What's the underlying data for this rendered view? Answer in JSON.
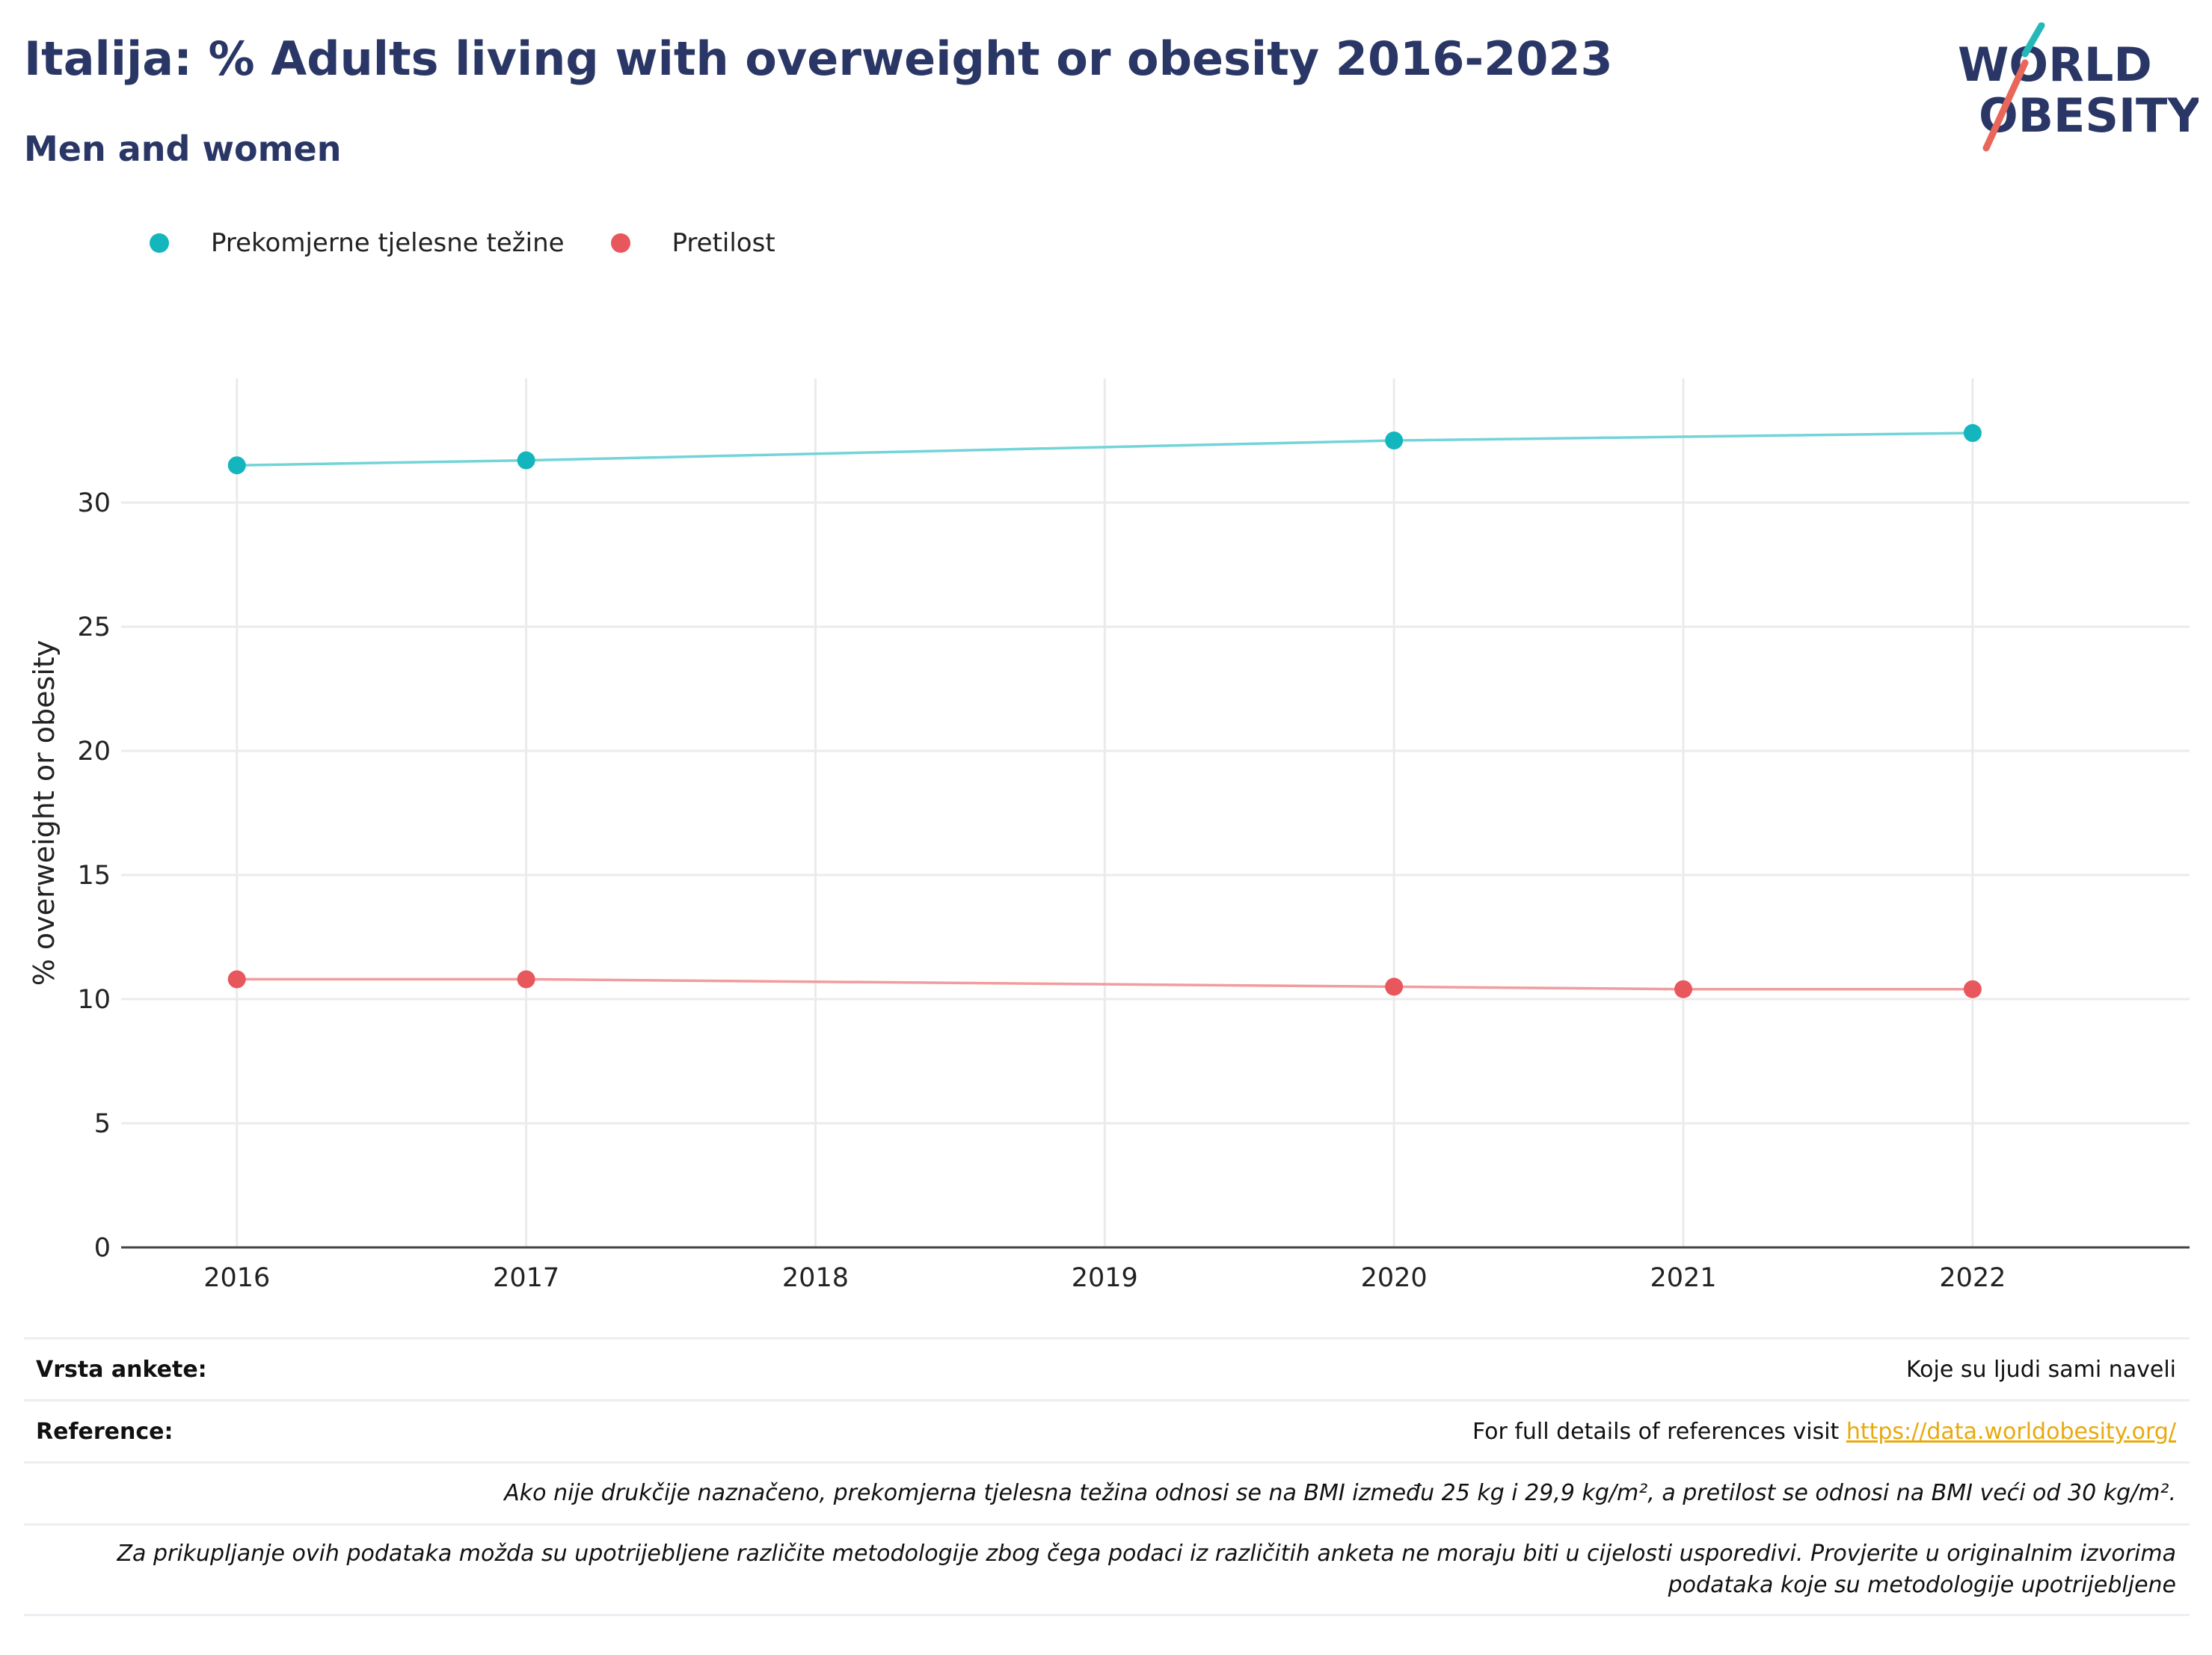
{
  "header": {
    "title": "Italija: % Adults living with overweight or obesity 2016-2023",
    "subtitle": "Men and women"
  },
  "logo": {
    "line1": "WORLD",
    "line2": "OBESITY",
    "accent_teal": "#26b8b8",
    "accent_coral": "#e8675a"
  },
  "chart_data": {
    "type": "line",
    "title": "",
    "xlabel": "",
    "ylabel": "% overweight or obesity",
    "x": [
      2016,
      2017,
      2020,
      2021,
      2022
    ],
    "x_ticks": [
      "2016",
      "2017",
      "2018",
      "2019",
      "2020",
      "2021",
      "2022"
    ],
    "y_ticks": [
      "0",
      "5",
      "10",
      "15",
      "20",
      "25",
      "30"
    ],
    "xlim": [
      2015.6,
      2022.75
    ],
    "ylim": [
      0,
      35
    ],
    "grid": true,
    "legend_position": "top-left",
    "series": [
      {
        "name": "Prekomjerne tjelesne težine",
        "color": "#13b6bd",
        "line_color": "#72d4d8",
        "points": [
          [
            2016,
            31.5
          ],
          [
            2017,
            31.7
          ],
          [
            2020,
            32.5
          ],
          [
            2022,
            32.8
          ]
        ]
      },
      {
        "name": "Pretilost",
        "color": "#e8575c",
        "line_color": "#f19c9e",
        "points": [
          [
            2016,
            10.8
          ],
          [
            2017,
            10.8
          ],
          [
            2020,
            10.5
          ],
          [
            2021,
            10.4
          ],
          [
            2022,
            10.4
          ]
        ]
      }
    ]
  },
  "footer": {
    "survey_label": "Vrsta ankete:",
    "survey_value": "Koje su ljudi sami naveli",
    "reference_label": "Reference:",
    "reference_text": "For full details of references visit ",
    "reference_link": "https://data.worldobesity.org/",
    "note1": "Ako nije drukčije naznačeno, prekomjerna tjelesna težina odnosi se na BMI između 25 kg i 29,9 kg/m², a pretilost se odnosi na BMI veći od 30 kg/m².",
    "note2_line1": "Za prikupljanje ovih podataka možda su upotrijebljene različite metodologije zbog čega podaci iz različitih anketa ne moraju biti u cijelosti usporedivi. Provjerite u originalnim izvorima",
    "note2_line2": "podataka koje su metodologije upotrijebljene"
  }
}
